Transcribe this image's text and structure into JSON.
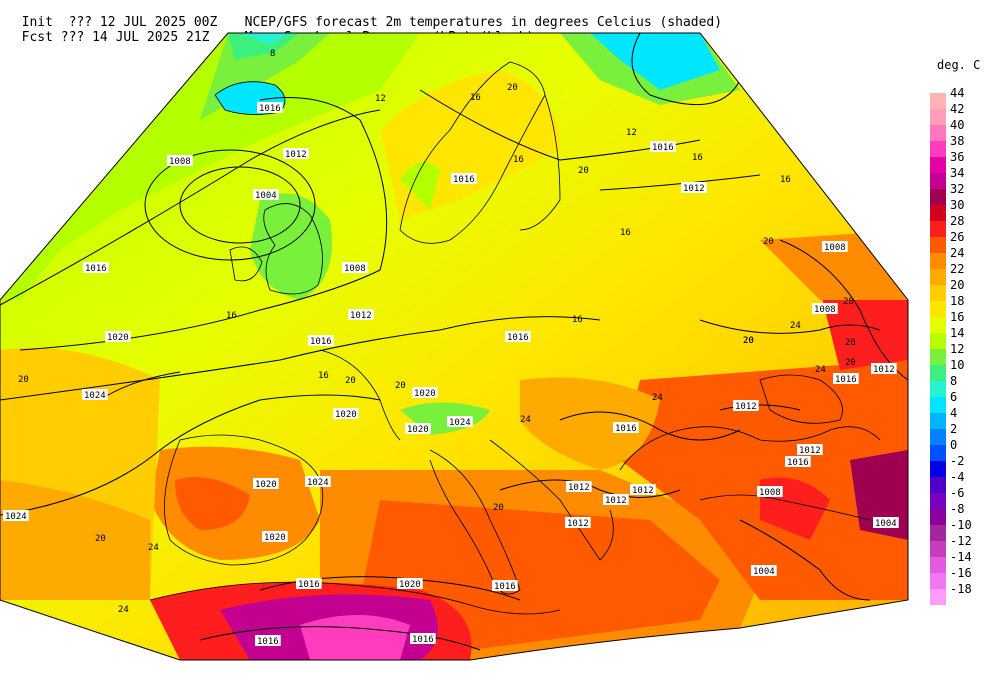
{
  "header": {
    "line1_left": "Init  ??? 12 JUL 2025 00Z",
    "line1_right": "NCEP/GFS forecast 2m temperatures in degrees Celcius (shaded)",
    "line2_left": "Fcst ??? 14 JUL 2025 21Z",
    "line2_right": "Mean Sea-Level Pressure (hPa) (black)."
  },
  "legend": {
    "title": "deg. C",
    "levels": [
      {
        "label": "44",
        "color": "#ffb4b4"
      },
      {
        "label": "42",
        "color": "#ff9eb8"
      },
      {
        "label": "40",
        "color": "#ff78be"
      },
      {
        "label": "38",
        "color": "#ff3cbe"
      },
      {
        "label": "36",
        "color": "#e600a5"
      },
      {
        "label": "34",
        "color": "#c30090"
      },
      {
        "label": "32",
        "color": "#a00050"
      },
      {
        "label": "30",
        "color": "#d2001e"
      },
      {
        "label": "28",
        "color": "#ff1e1e"
      },
      {
        "label": "26",
        "color": "#ff5a00"
      },
      {
        "label": "24",
        "color": "#ff8c00"
      },
      {
        "label": "22",
        "color": "#ffaa00"
      },
      {
        "label": "20",
        "color": "#ffcd00"
      },
      {
        "label": "18",
        "color": "#ffe600"
      },
      {
        "label": "16",
        "color": "#e6ff00"
      },
      {
        "label": "14",
        "color": "#b4ff00"
      },
      {
        "label": "12",
        "color": "#78f03c"
      },
      {
        "label": "10",
        "color": "#3cf07d"
      },
      {
        "label": "8",
        "color": "#28f0d2"
      },
      {
        "label": "6",
        "color": "#00e6ff"
      },
      {
        "label": "4",
        "color": "#00b4ff"
      },
      {
        "label": "2",
        "color": "#0082ff"
      },
      {
        "label": "0",
        "color": "#0050ff"
      },
      {
        "label": "-2",
        "color": "#0000e6"
      },
      {
        "label": "-4",
        "color": "#5000c8"
      },
      {
        "label": "-6",
        "color": "#7800be"
      },
      {
        "label": "-8",
        "color": "#8c00a0"
      },
      {
        "label": "-10",
        "color": "#a0289b"
      },
      {
        "label": "-12",
        "color": "#c83cbe"
      },
      {
        "label": "-14",
        "color": "#e15ae1"
      },
      {
        "label": "-16",
        "color": "#f078f0"
      },
      {
        "label": "-18",
        "color": "#ff9bff"
      }
    ]
  },
  "isobar_labels": [
    {
      "text": "1016"
    },
    {
      "text": "1012"
    },
    {
      "text": "1008"
    },
    {
      "text": "1004"
    },
    {
      "text": "1016"
    },
    {
      "text": "1008"
    },
    {
      "text": "1012"
    },
    {
      "text": "1016"
    },
    {
      "text": "1020"
    },
    {
      "text": "1024"
    },
    {
      "text": "1024"
    },
    {
      "text": "1016"
    },
    {
      "text": "1016"
    },
    {
      "text": "1012"
    },
    {
      "text": "1016"
    },
    {
      "text": "1020"
    },
    {
      "text": "1020"
    },
    {
      "text": "1020"
    },
    {
      "text": "1024"
    },
    {
      "text": "1016"
    },
    {
      "text": "1012"
    },
    {
      "text": "1016"
    },
    {
      "text": "1012"
    },
    {
      "text": "1008"
    },
    {
      "text": "1008"
    },
    {
      "text": "1016"
    },
    {
      "text": "1012"
    },
    {
      "text": "1012"
    },
    {
      "text": "1008"
    },
    {
      "text": "1004"
    },
    {
      "text": "1004"
    },
    {
      "text": "1020"
    },
    {
      "text": "1024"
    },
    {
      "text": "1020"
    },
    {
      "text": "1016"
    },
    {
      "text": "1020"
    },
    {
      "text": "1016"
    },
    {
      "text": "1016"
    },
    {
      "text": "1016"
    },
    {
      "text": "1012"
    },
    {
      "text": "1012"
    },
    {
      "text": "1012"
    }
  ],
  "temperature_labels": [
    {
      "text": "8"
    },
    {
      "text": "12"
    },
    {
      "text": "16"
    },
    {
      "text": "20"
    },
    {
      "text": "16"
    },
    {
      "text": "12"
    },
    {
      "text": "16"
    },
    {
      "text": "20"
    },
    {
      "text": "16"
    },
    {
      "text": "16"
    },
    {
      "text": "16"
    },
    {
      "text": "20"
    },
    {
      "text": "24"
    },
    {
      "text": "20"
    },
    {
      "text": "28"
    },
    {
      "text": "24"
    },
    {
      "text": "20"
    },
    {
      "text": "20"
    },
    {
      "text": "20"
    },
    {
      "text": "16"
    },
    {
      "text": "20"
    },
    {
      "text": "20"
    },
    {
      "text": "24"
    },
    {
      "text": "24"
    },
    {
      "text": "20"
    },
    {
      "text": "24"
    },
    {
      "text": "28"
    },
    {
      "text": "24"
    },
    {
      "text": "20"
    },
    {
      "text": "16"
    }
  ]
}
